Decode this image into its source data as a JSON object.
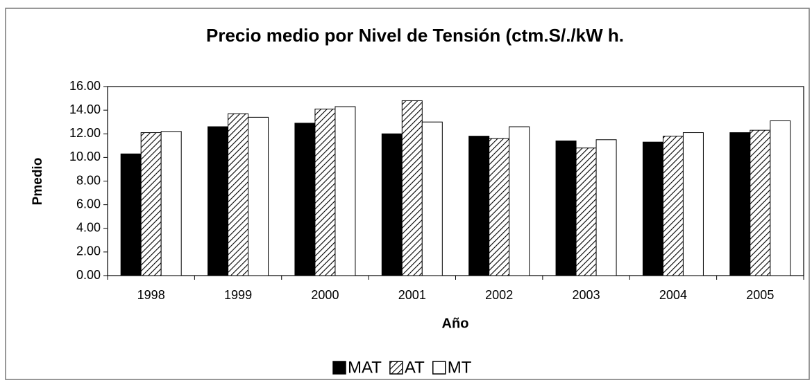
{
  "chart_data": {
    "type": "bar",
    "title": "Precio medio por Nivel de Tensión (ctm.S/./kW h.",
    "xlabel": "Año",
    "ylabel": "Pmedio",
    "categories": [
      "1998",
      "1999",
      "2000",
      "2001",
      "2002",
      "2003",
      "2004",
      "2005"
    ],
    "series": [
      {
        "name": "MAT",
        "color": "#000000",
        "values": [
          10.3,
          12.6,
          12.9,
          12.0,
          11.8,
          11.4,
          11.3,
          12.1
        ]
      },
      {
        "name": "AT",
        "color": "#ffffff",
        "pattern": "hatch",
        "values": [
          12.1,
          13.7,
          14.1,
          14.8,
          11.6,
          10.8,
          11.8,
          12.3
        ]
      },
      {
        "name": "MT",
        "color": "#ffffff",
        "values": [
          12.2,
          13.4,
          14.3,
          13.0,
          12.6,
          11.5,
          12.1,
          13.1
        ]
      }
    ],
    "ylim": [
      0,
      16
    ],
    "yticks": [
      {
        "value": 0,
        "label": "0.00"
      },
      {
        "value": 2,
        "label": "2.00"
      },
      {
        "value": 4,
        "label": "4.00"
      },
      {
        "value": 6,
        "label": "6.00"
      },
      {
        "value": 8,
        "label": "8.00"
      },
      {
        "value": 10,
        "label": "10.00"
      },
      {
        "value": 12,
        "label": "12.00"
      },
      {
        "value": 14,
        "label": "14.00"
      },
      {
        "value": 16,
        "label": "16.00"
      }
    ],
    "grid": false,
    "legend": "bottom"
  }
}
